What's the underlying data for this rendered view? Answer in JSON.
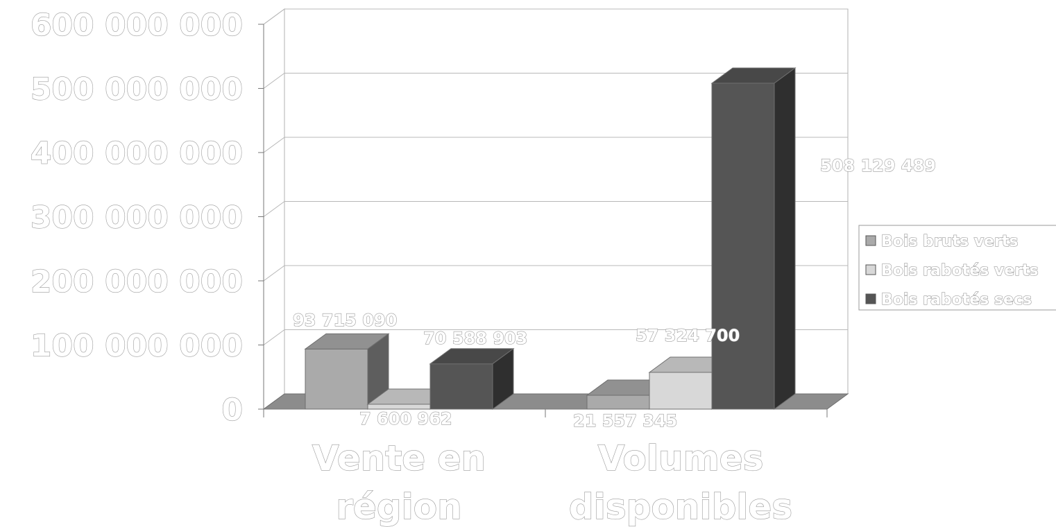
{
  "chart_data": {
    "type": "bar",
    "categories": [
      "Vente en région",
      "Volumes disponibles"
    ],
    "category_lines": [
      [
        "Vente en",
        "région"
      ],
      [
        "Volumes",
        "disponibles"
      ]
    ],
    "series": [
      {
        "name": "Bois bruts verts",
        "values": [
          93715090,
          21557345
        ],
        "color": "#aaaaaa"
      },
      {
        "name": "Bois rabotés verts",
        "values": [
          7600962,
          57324700
        ],
        "color": "#d8d8d8"
      },
      {
        "name": "Bois rabotés secs",
        "values": [
          70588903,
          508129489
        ],
        "color": "#555555"
      }
    ],
    "data_labels": [
      [
        "93 715 090",
        "21 557 345"
      ],
      [
        "7 600 962",
        "57 324 700"
      ],
      [
        "70 588 903",
        "508 129 489"
      ]
    ],
    "y_ticks": [
      0,
      100000000,
      200000000,
      300000000,
      400000000,
      500000000,
      600000000
    ],
    "y_tick_labels": [
      "0",
      "100 000 000",
      "200 000 000",
      "300 000 000",
      "400 000 000",
      "500 000 000",
      "600 000 000"
    ],
    "ylim": [
      0,
      600000000
    ],
    "grid": true,
    "legend_position": "right",
    "style": "3d-clustered-column",
    "title": "",
    "xlabel": "",
    "ylabel": ""
  }
}
